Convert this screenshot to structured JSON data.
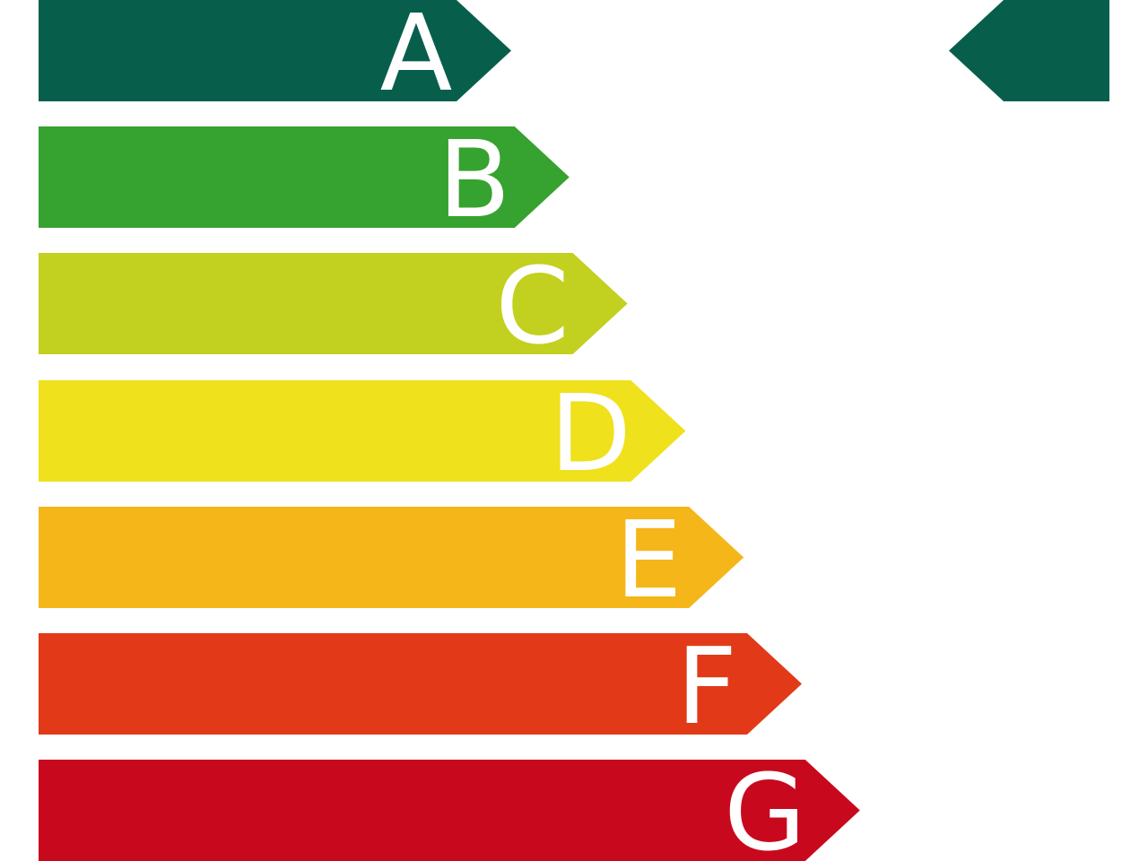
{
  "ratings": [
    {
      "letter": "A",
      "color": "#075f4b"
    },
    {
      "letter": "B",
      "color": "#36a22f"
    },
    {
      "letter": "C",
      "color": "#c2d01f"
    },
    {
      "letter": "D",
      "color": "#efe11b"
    },
    {
      "letter": "E",
      "color": "#f5b619"
    },
    {
      "letter": "F",
      "color": "#e23a18"
    },
    {
      "letter": "G",
      "color": "#c8091d"
    }
  ],
  "indicator": {
    "rating": "A",
    "color": "#075f4b"
  }
}
